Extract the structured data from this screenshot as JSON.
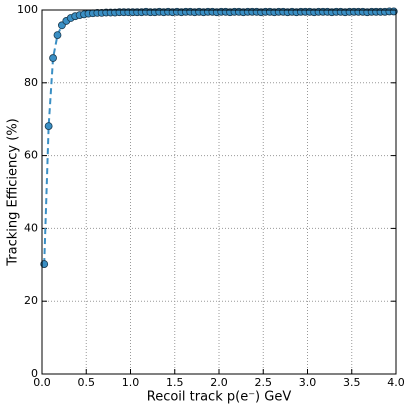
{
  "chart_data": {
    "type": "line",
    "xlabel": "Recoil track p(e⁻) GeV",
    "ylabel": "Tracking Efficiency (%)",
    "x": [
      0.025,
      0.075,
      0.125,
      0.175,
      0.225,
      0.275,
      0.325,
      0.375,
      0.425,
      0.475,
      0.525,
      0.575,
      0.625,
      0.675,
      0.725,
      0.775,
      0.825,
      0.875,
      0.925,
      0.975,
      1.025,
      1.075,
      1.125,
      1.175,
      1.225,
      1.275,
      1.325,
      1.375,
      1.425,
      1.475,
      1.525,
      1.575,
      1.625,
      1.675,
      1.725,
      1.775,
      1.825,
      1.875,
      1.925,
      1.975,
      2.025,
      2.075,
      2.125,
      2.175,
      2.225,
      2.275,
      2.325,
      2.375,
      2.425,
      2.475,
      2.525,
      2.575,
      2.625,
      2.675,
      2.725,
      2.775,
      2.825,
      2.875,
      2.925,
      2.975,
      3.025,
      3.075,
      3.125,
      3.175,
      3.225,
      3.275,
      3.325,
      3.375,
      3.425,
      3.475,
      3.525,
      3.575,
      3.625,
      3.675,
      3.725,
      3.775,
      3.825,
      3.875,
      3.925,
      3.975
    ],
    "series": [
      {
        "color": "#3a8fc4",
        "values": [
          30.2,
          68.1,
          86.8,
          93.1,
          95.8,
          97.0,
          97.8,
          98.3,
          98.6,
          98.8,
          99.0,
          99.1,
          99.2,
          99.2,
          99.3,
          99.3,
          99.3,
          99.4,
          99.4,
          99.4,
          99.4,
          99.4,
          99.4,
          99.5,
          99.4,
          99.4,
          99.5,
          99.4,
          99.5,
          99.4,
          99.5,
          99.4,
          99.5,
          99.5,
          99.4,
          99.5,
          99.4,
          99.5,
          99.5,
          99.4,
          99.5,
          99.5,
          99.4,
          99.5,
          99.5,
          99.4,
          99.5,
          99.5,
          99.5,
          99.4,
          99.5,
          99.5,
          99.4,
          99.5,
          99.5,
          99.4,
          99.5,
          99.4,
          99.5,
          99.5,
          99.5,
          99.4,
          99.5,
          99.5,
          99.5,
          99.4,
          99.5,
          99.5,
          99.4,
          99.5,
          99.5,
          99.5,
          99.5,
          99.4,
          99.5,
          99.5,
          99.5,
          99.5,
          99.6,
          99.6
        ]
      }
    ],
    "xlim": [
      0,
      4
    ],
    "ylim": [
      0,
      100
    ],
    "xticks": [
      {
        "value": 0,
        "label": "0.0"
      },
      0.5,
      {
        "value": 1,
        "label": "1.0"
      },
      1.5,
      {
        "value": 2,
        "label": "2.0"
      },
      2.5,
      {
        "value": 3,
        "label": "3.0"
      },
      3.5,
      {
        "value": 4,
        "label": "4.0"
      }
    ],
    "yticks": [
      0,
      20,
      40,
      60,
      80,
      100
    ],
    "grid": true
  }
}
